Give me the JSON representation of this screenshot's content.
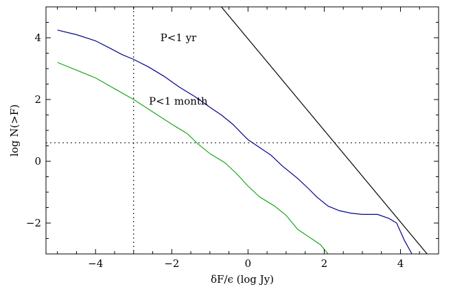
{
  "chart_data": {
    "type": "line",
    "title": "",
    "xlabel": "δF/ϵ (log  Jy)",
    "ylabel": "log N(>F)",
    "xlim": [
      -5.3,
      5.0
    ],
    "ylim": [
      -3.0,
      5.0
    ],
    "x_ticks": [
      {
        "value": -4,
        "label": "−4"
      },
      {
        "value": -2,
        "label": "−2"
      },
      {
        "value": 0,
        "label": "0"
      },
      {
        "value": 2,
        "label": "2"
      },
      {
        "value": 4,
        "label": "4"
      }
    ],
    "y_ticks": [
      {
        "value": -2,
        "label": "−2"
      },
      {
        "value": 0,
        "label": "0"
      },
      {
        "value": 2,
        "label": "2"
      },
      {
        "value": 4,
        "label": "4"
      }
    ],
    "grid": false,
    "series": [
      {
        "color": "#00008b",
        "x": [
          -5.0,
          -4.5,
          -4.0,
          -3.6,
          -3.3,
          -3.0,
          -2.6,
          -2.2,
          -1.8,
          -1.4,
          -1.0,
          -0.7,
          -0.4,
          -0.2,
          0.0,
          0.3,
          0.6,
          0.9,
          1.3,
          1.6,
          1.8,
          2.1,
          2.4,
          2.7,
          3.0,
          3.4,
          3.7,
          3.9,
          4.1,
          4.3
        ],
        "y": [
          4.25,
          4.1,
          3.9,
          3.65,
          3.45,
          3.3,
          3.05,
          2.75,
          2.4,
          2.1,
          1.75,
          1.5,
          1.2,
          0.95,
          0.7,
          0.45,
          0.2,
          -0.15,
          -0.55,
          -0.9,
          -1.15,
          -1.45,
          -1.6,
          -1.68,
          -1.72,
          -1.72,
          -1.85,
          -2.0,
          -2.55,
          -3.0
        ]
      },
      {
        "color": "#1aa51a",
        "x": [
          -5.0,
          -4.5,
          -4.0,
          -3.5,
          -3.0,
          -2.5,
          -2.0,
          -1.6,
          -1.3,
          -1.0,
          -0.6,
          -0.3,
          0.0,
          0.3,
          0.7,
          1.0,
          1.3,
          1.6,
          1.9,
          2.1
        ],
        "y": [
          3.2,
          2.95,
          2.7,
          2.35,
          2.0,
          1.6,
          1.2,
          0.9,
          0.55,
          0.25,
          -0.05,
          -0.4,
          -0.8,
          -1.15,
          -1.45,
          -1.75,
          -2.2,
          -2.45,
          -2.7,
          -3.0
        ]
      },
      {
        "color": "#000000",
        "x": [
          -0.7,
          4.7
        ],
        "y": [
          5.0,
          -3.0
        ]
      }
    ],
    "reference_lines": [
      {
        "orientation": "vertical",
        "value": -3.0,
        "style": "dotted"
      },
      {
        "orientation": "horizontal",
        "value": 0.6,
        "style": "dotted"
      }
    ],
    "annotations": [
      {
        "text": "P<1 yr",
        "x": -2.3,
        "y": 4.0
      },
      {
        "text": "P<1 month",
        "x": -2.6,
        "y": 1.95
      }
    ]
  }
}
